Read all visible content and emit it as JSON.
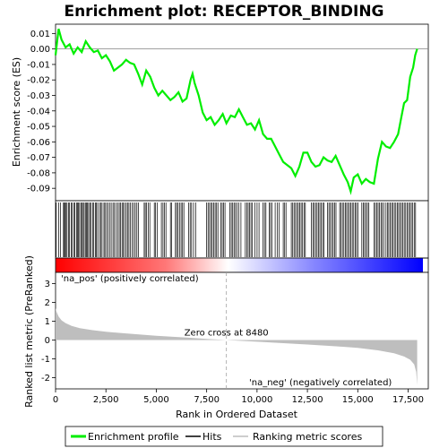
{
  "chart_data": {
    "type": "line",
    "title": "Enrichment plot: RECEPTOR_BINDING",
    "colors": {
      "enrichment": "#00ee00",
      "hits": "#000000",
      "metric_fill": "#bebebe",
      "zero_line": "#a0a0a0",
      "pos_text": "#cc0000",
      "neg_text": "#0000cc",
      "gradient_pos": "#ff0000",
      "gradient_mid": "#ffffff",
      "gradient_neg": "#0000ff"
    },
    "x_axis": {
      "label": "Rank in Ordered Dataset",
      "range": [
        0,
        18500
      ],
      "ticks": [
        0,
        2500,
        5000,
        7500,
        10000,
        12500,
        15000,
        17500
      ],
      "tick_labels": [
        "0",
        "2,500",
        "5,000",
        "7,500",
        "10,000",
        "12,500",
        "15,000",
        "17,500"
      ]
    },
    "enrichment_panel": {
      "ylabel": "Enrichment score (ES)",
      "ylim": [
        -0.098,
        0.016
      ],
      "yticks": [
        0.01,
        0.0,
        -0.01,
        -0.02,
        -0.03,
        -0.04,
        -0.05,
        -0.06,
        -0.07,
        -0.08,
        -0.09
      ],
      "ytick_labels": [
        "0.01",
        "0.00",
        "-0.01",
        "-0.02",
        "-0.03",
        "-0.04",
        "-0.05",
        "-0.06",
        "-0.07",
        "-0.08",
        "-0.09"
      ],
      "profile": [
        [
          0,
          -0.004
        ],
        [
          150,
          0.013
        ],
        [
          300,
          0.006
        ],
        [
          500,
          0.001
        ],
        [
          700,
          0.003
        ],
        [
          900,
          -0.003
        ],
        [
          1100,
          0.001
        ],
        [
          1300,
          -0.002
        ],
        [
          1500,
          0.005
        ],
        [
          1700,
          0.001
        ],
        [
          1900,
          -0.002
        ],
        [
          2100,
          -0.001
        ],
        [
          2300,
          -0.006
        ],
        [
          2500,
          -0.004
        ],
        [
          2700,
          -0.008
        ],
        [
          2900,
          -0.014
        ],
        [
          3100,
          -0.012
        ],
        [
          3300,
          -0.01
        ],
        [
          3500,
          -0.007
        ],
        [
          3700,
          -0.009
        ],
        [
          3900,
          -0.01
        ],
        [
          4100,
          -0.016
        ],
        [
          4300,
          -0.023
        ],
        [
          4500,
          -0.014
        ],
        [
          4700,
          -0.018
        ],
        [
          4900,
          -0.025
        ],
        [
          5100,
          -0.03
        ],
        [
          5300,
          -0.027
        ],
        [
          5500,
          -0.03
        ],
        [
          5700,
          -0.033
        ],
        [
          5900,
          -0.031
        ],
        [
          6100,
          -0.028
        ],
        [
          6300,
          -0.034
        ],
        [
          6500,
          -0.032
        ],
        [
          6700,
          -0.02
        ],
        [
          6800,
          -0.016
        ],
        [
          6900,
          -0.022
        ],
        [
          7100,
          -0.03
        ],
        [
          7300,
          -0.041
        ],
        [
          7500,
          -0.046
        ],
        [
          7700,
          -0.044
        ],
        [
          7900,
          -0.049
        ],
        [
          8100,
          -0.046
        ],
        [
          8300,
          -0.042
        ],
        [
          8480,
          -0.048
        ],
        [
          8700,
          -0.043
        ],
        [
          8900,
          -0.044
        ],
        [
          9100,
          -0.039
        ],
        [
          9300,
          -0.044
        ],
        [
          9500,
          -0.049
        ],
        [
          9700,
          -0.048
        ],
        [
          9900,
          -0.052
        ],
        [
          10100,
          -0.046
        ],
        [
          10300,
          -0.055
        ],
        [
          10500,
          -0.058
        ],
        [
          10700,
          -0.058
        ],
        [
          10900,
          -0.063
        ],
        [
          11100,
          -0.068
        ],
        [
          11300,
          -0.073
        ],
        [
          11500,
          -0.075
        ],
        [
          11700,
          -0.077
        ],
        [
          11900,
          -0.082
        ],
        [
          12100,
          -0.076
        ],
        [
          12300,
          -0.067
        ],
        [
          12500,
          -0.067
        ],
        [
          12700,
          -0.073
        ],
        [
          12900,
          -0.076
        ],
        [
          13100,
          -0.075
        ],
        [
          13300,
          -0.07
        ],
        [
          13500,
          -0.072
        ],
        [
          13700,
          -0.073
        ],
        [
          13900,
          -0.069
        ],
        [
          14100,
          -0.075
        ],
        [
          14300,
          -0.081
        ],
        [
          14500,
          -0.086
        ],
        [
          14650,
          -0.092
        ],
        [
          14800,
          -0.083
        ],
        [
          15000,
          -0.081
        ],
        [
          15200,
          -0.087
        ],
        [
          15400,
          -0.084
        ],
        [
          15600,
          -0.086
        ],
        [
          15800,
          -0.087
        ],
        [
          16000,
          -0.071
        ],
        [
          16200,
          -0.06
        ],
        [
          16400,
          -0.063
        ],
        [
          16600,
          -0.064
        ],
        [
          16800,
          -0.06
        ],
        [
          17000,
          -0.055
        ],
        [
          17150,
          -0.045
        ],
        [
          17300,
          -0.035
        ],
        [
          17450,
          -0.033
        ],
        [
          17600,
          -0.018
        ],
        [
          17750,
          -0.012
        ],
        [
          17850,
          -0.004
        ],
        [
          17950,
          0.0
        ]
      ]
    },
    "hits_panel": {
      "hit_positions": [
        30,
        160,
        250,
        390,
        420,
        470,
        520,
        570,
        650,
        690,
        780,
        830,
        920,
        960,
        1040,
        1090,
        1140,
        1190,
        1260,
        1300,
        1370,
        1420,
        1480,
        1540,
        1580,
        1640,
        1700,
        1760,
        1850,
        1900,
        1980,
        2030,
        2090,
        2180,
        2250,
        2310,
        2400,
        2450,
        2530,
        2600,
        2680,
        2760,
        2850,
        2920,
        3010,
        3080,
        3160,
        3230,
        3300,
        3360,
        3430,
        3510,
        3570,
        3640,
        3720,
        3800,
        3880,
        3960,
        4040,
        4120,
        4400,
        4450,
        4520,
        4600,
        4680,
        4900,
        4960,
        5050,
        5250,
        5330,
        5400,
        5480,
        5700,
        5760,
        5950,
        6010,
        6080,
        6150,
        6230,
        6300,
        6370,
        6600,
        6680,
        6750,
        6850,
        6950,
        7500,
        7570,
        7640,
        7710,
        7780,
        7850,
        7920,
        7990,
        8060,
        8200,
        8270,
        8340,
        8410,
        8650,
        8720,
        8790,
        8860,
        8930,
        9000,
        9100,
        9200,
        9420,
        9490,
        9560,
        9630,
        9700,
        9770,
        9900,
        10000,
        10100,
        10300,
        10370,
        10440,
        10600,
        10670,
        10740,
        10900,
        11000,
        11100,
        11300,
        11370,
        11440,
        11700,
        11770,
        11840,
        11910,
        11980,
        12050,
        12120,
        12190,
        12260,
        12330,
        12400,
        12700,
        12770,
        12840,
        12910,
        12980,
        13050,
        13120,
        13190,
        13260,
        13330,
        13500,
        13570,
        13640,
        13710,
        13780,
        13850,
        13920,
        14100,
        14170,
        14240,
        14310,
        14380,
        14450,
        14520,
        14590,
        14660,
        14730,
        14800,
        14870,
        14940,
        15010,
        15200,
        15270,
        15340,
        15410,
        15480,
        15550,
        15800,
        15870,
        15940,
        16010,
        16080,
        16150,
        16220,
        16290,
        16400,
        16470,
        16540,
        16610,
        16680,
        16750,
        16820,
        16890,
        16960,
        17030,
        17100,
        17170,
        17240,
        17310,
        17380,
        17450,
        17520,
        17590,
        17660,
        17730,
        17800,
        17870
      ]
    },
    "metric_panel": {
      "ylabel": "Ranked list metric (PreRanked)",
      "ylim": [
        -2.6,
        3.6
      ],
      "yticks": [
        3,
        2,
        1,
        0,
        -1,
        -2
      ],
      "ytick_labels": [
        "3",
        "2",
        "1",
        "0",
        "-1",
        "-2"
      ],
      "curve": [
        [
          0,
          1.7
        ],
        [
          50,
          1.5
        ],
        [
          150,
          1.25
        ],
        [
          300,
          1.05
        ],
        [
          500,
          0.9
        ],
        [
          800,
          0.75
        ],
        [
          1200,
          0.63
        ],
        [
          1800,
          0.53
        ],
        [
          2500,
          0.44
        ],
        [
          3500,
          0.35
        ],
        [
          5000,
          0.23
        ],
        [
          6500,
          0.13
        ],
        [
          7500,
          0.06
        ],
        [
          8480,
          0.0
        ],
        [
          9500,
          -0.06
        ],
        [
          11000,
          -0.15
        ],
        [
          12500,
          -0.24
        ],
        [
          14000,
          -0.34
        ],
        [
          15000,
          -0.42
        ],
        [
          16000,
          -0.55
        ],
        [
          16800,
          -0.7
        ],
        [
          17300,
          -0.88
        ],
        [
          17600,
          -1.05
        ],
        [
          17800,
          -1.3
        ],
        [
          17900,
          -1.7
        ],
        [
          17950,
          -2.4
        ]
      ],
      "pos_label": "'na_pos' (positively correlated)",
      "neg_label": "'na_neg' (negatively correlated)",
      "zero_cross_label": "Zero cross at 8480",
      "zero_cross": 8480
    },
    "legend": [
      {
        "label": "Enrichment profile",
        "color": "#00ee00"
      },
      {
        "label": "Hits",
        "color": "#000000"
      },
      {
        "label": "Ranking metric scores",
        "color": "#bebebe"
      }
    ]
  }
}
